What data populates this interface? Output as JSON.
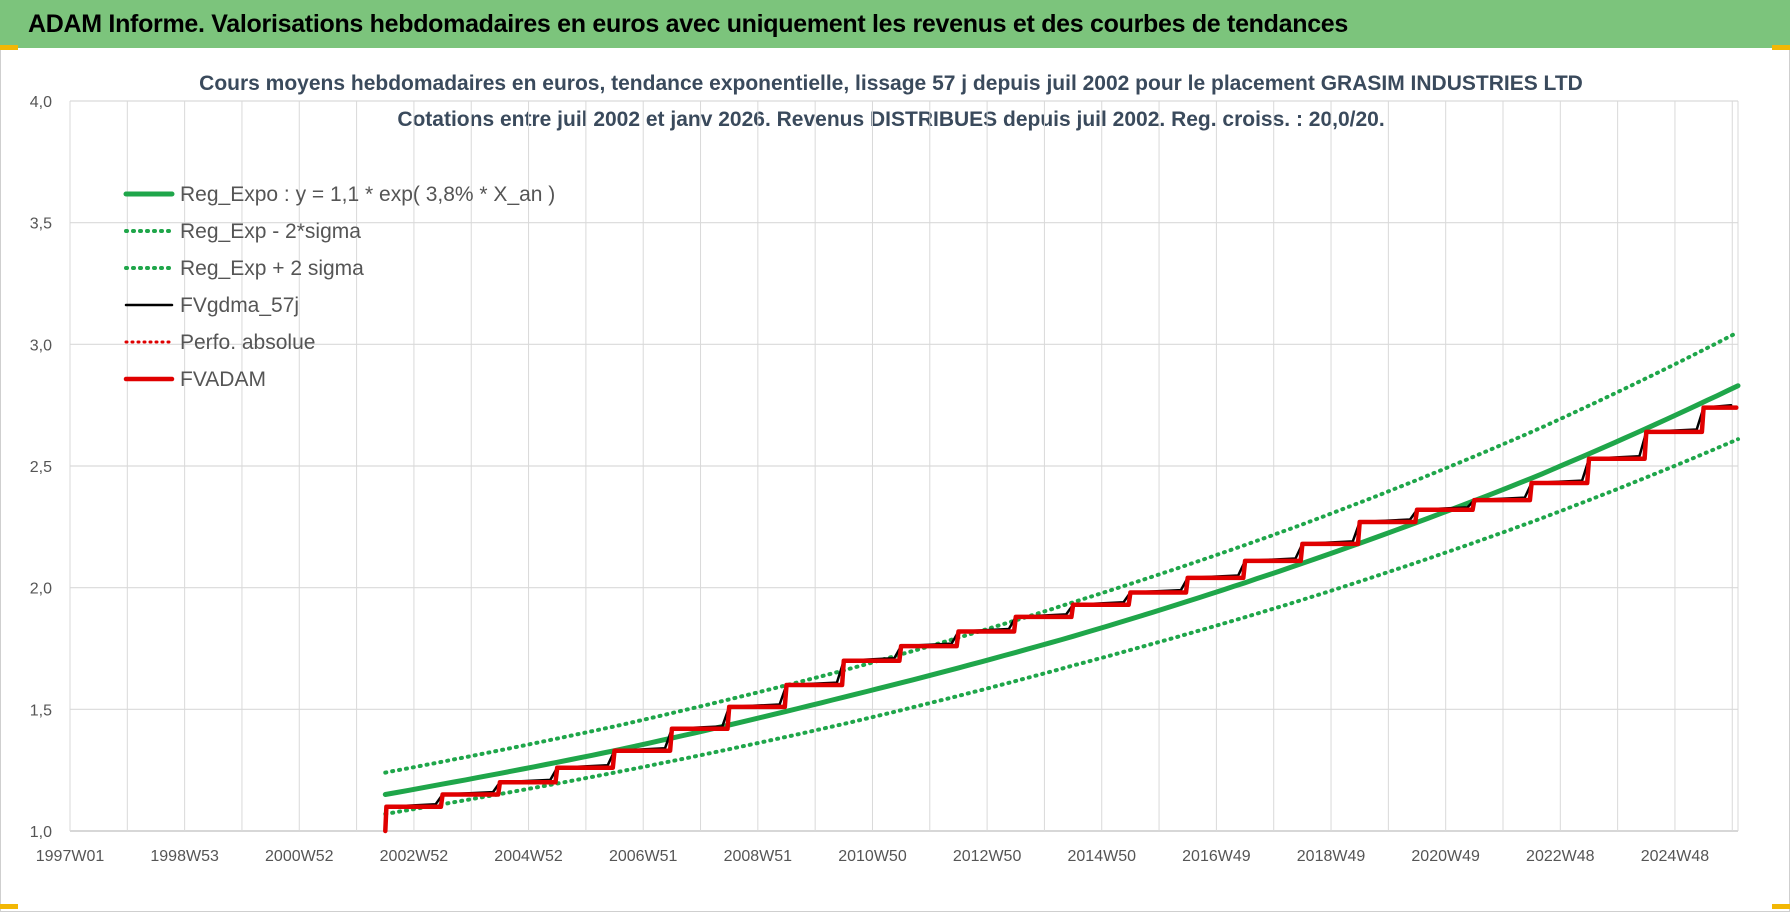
{
  "header": {
    "title": "ADAM Informe. Valorisations hebdomadaires en euros avec uniquement les revenus et des courbes de tendances"
  },
  "colors": {
    "header_bg": "#7cc47c",
    "trend": "#1fa64a",
    "band": "#1fa64a",
    "fvgdma": "#000000",
    "perfo": "#e00000",
    "fvadam": "#e00000",
    "grid": "#d9d9d9"
  },
  "chart_data": {
    "type": "line",
    "title": "Cours moyens hebdomadaires en euros, tendance exponentielle, lissage 57 j depuis juil 2002 pour le placement GRASIM INDUSTRIES LTD",
    "subtitle": "Cotations entre juil 2002 et janv 2026. Revenus DISTRIBUES depuis juil 2002. Reg. croiss. : 20,0/20.",
    "xlabel": "",
    "ylabel": "",
    "ylim": [
      1.0,
      4.0
    ],
    "y_ticks": [
      "1,0",
      "1,5",
      "2,0",
      "2,5",
      "3,0",
      "3,5",
      "4,0"
    ],
    "x_ticks": [
      "1997W01",
      "1998W53",
      "2000W52",
      "2002W52",
      "2004W52",
      "2006W51",
      "2008W51",
      "2010W50",
      "2012W50",
      "2014W50",
      "2016W49",
      "2018W49",
      "2020W49",
      "2022W48",
      "2024W48"
    ],
    "xlim": [
      1997.0,
      2026.1
    ],
    "grid": true,
    "legend_position": "top-left",
    "legend": [
      {
        "label": "Reg_Expo : y = 1,1 * exp( 3,8% *  X_an )",
        "style": "solid-green"
      },
      {
        "label": "Reg_Exp - 2*sigma",
        "style": "dotted-green"
      },
      {
        "label": "Reg_Exp + 2 sigma",
        "style": "dotted-green"
      },
      {
        "label": "FVgdma_57j",
        "style": "solid-black"
      },
      {
        "label": "Perfo. absolue",
        "style": "dotted-red"
      },
      {
        "label": "FVADAM",
        "style": "solid-red"
      }
    ],
    "series": [
      {
        "name": "Reg_Expo : y = 1,1 * exp( 3,8% *  X_an )",
        "style": "solid-green",
        "x": [
          2002.5,
          2006.5,
          2010.5,
          2014.5,
          2018.5,
          2022.5,
          2026.1
        ],
        "y": [
          1.15,
          1.33,
          1.55,
          1.8,
          2.1,
          2.45,
          2.83
        ]
      },
      {
        "name": "Reg_Exp - 2*sigma",
        "style": "dotted-green",
        "x": [
          2002.5,
          2006.5,
          2010.5,
          2014.5,
          2018.5,
          2022.5,
          2026.1
        ],
        "y": [
          1.07,
          1.24,
          1.44,
          1.68,
          1.95,
          2.27,
          2.61
        ]
      },
      {
        "name": "Reg_Exp + 2 sigma",
        "style": "dotted-green",
        "x": [
          2002.5,
          2006.5,
          2010.5,
          2014.5,
          2018.5,
          2022.5,
          2026.1
        ],
        "y": [
          1.24,
          1.43,
          1.66,
          1.94,
          2.26,
          2.64,
          3.05
        ]
      },
      {
        "name": "FVADAM",
        "style": "solid-red",
        "x": [
          2002.5,
          2003.5,
          2004.5,
          2005.5,
          2006.5,
          2007.5,
          2008.5,
          2009.5,
          2010.5,
          2011.5,
          2012.5,
          2013.5,
          2014.5,
          2015.5,
          2016.5,
          2017.5,
          2018.5,
          2019.5,
          2020.5,
          2021.5,
          2022.5,
          2023.5,
          2024.5,
          2025.5
        ],
        "y": [
          1.1,
          1.15,
          1.2,
          1.26,
          1.33,
          1.42,
          1.51,
          1.6,
          1.7,
          1.76,
          1.82,
          1.88,
          1.93,
          1.98,
          2.04,
          2.11,
          2.18,
          2.27,
          2.32,
          2.36,
          2.43,
          2.53,
          2.64,
          2.74
        ]
      },
      {
        "name": "FVgdma_57j",
        "style": "solid-black",
        "x": [
          2002.5,
          2003.5,
          2004.5,
          2005.5,
          2006.5,
          2007.5,
          2008.5,
          2009.5,
          2010.5,
          2011.5,
          2012.5,
          2013.5,
          2014.5,
          2015.5,
          2016.5,
          2017.5,
          2018.5,
          2019.5,
          2020.5,
          2021.5,
          2022.5,
          2023.5,
          2024.5,
          2025.5
        ],
        "y": [
          1.1,
          1.15,
          1.2,
          1.26,
          1.33,
          1.42,
          1.51,
          1.6,
          1.7,
          1.76,
          1.82,
          1.88,
          1.93,
          1.98,
          2.04,
          2.11,
          2.18,
          2.27,
          2.32,
          2.36,
          2.43,
          2.53,
          2.64,
          2.74
        ]
      }
    ]
  }
}
